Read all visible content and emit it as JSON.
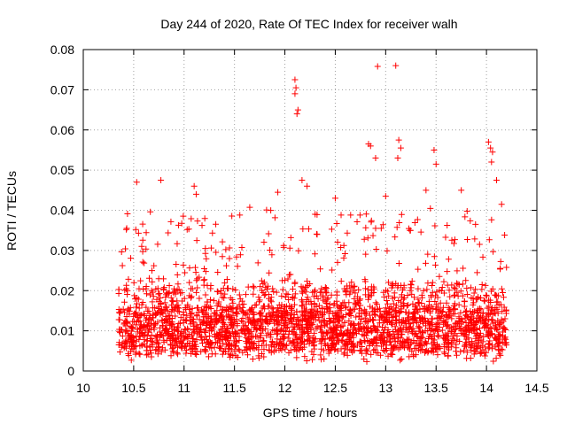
{
  "chart_data": {
    "type": "scatter",
    "title": "Day 244 of 2020, Rate Of TEC Index for receiver walh",
    "xlabel": "GPS time / hours",
    "ylabel": "ROTI / TECUs",
    "xlim": [
      10,
      14.5
    ],
    "ylim": [
      0,
      0.08
    ],
    "xticks": [
      10,
      10.5,
      11,
      11.5,
      12,
      12.5,
      13,
      13.5,
      14,
      14.5
    ],
    "xtick_labels": [
      "10",
      "10.5",
      "11",
      "11.5",
      "12",
      "12.5",
      "13",
      "13.5",
      "14",
      "14.5"
    ],
    "yticks": [
      0,
      0.01,
      0.02,
      0.03,
      0.04,
      0.05,
      0.06,
      0.07,
      0.08
    ],
    "ytick_labels": [
      "0",
      "0.01",
      "0.02",
      "0.03",
      "0.04",
      "0.05",
      "0.06",
      "0.07",
      "0.08"
    ],
    "grid": true,
    "marker": "plus",
    "color": "#ff0000",
    "time_range": [
      10.35,
      14.2
    ],
    "typical_range": [
      0.003,
      0.03
    ],
    "point_count": 2600,
    "highlight_points": [
      {
        "x": 10.53,
        "y": 0.047
      },
      {
        "x": 10.77,
        "y": 0.0475
      },
      {
        "x": 11.1,
        "y": 0.046
      },
      {
        "x": 11.12,
        "y": 0.044
      },
      {
        "x": 11.93,
        "y": 0.0445
      },
      {
        "x": 12.1,
        "y": 0.0725
      },
      {
        "x": 12.11,
        "y": 0.0705
      },
      {
        "x": 12.1,
        "y": 0.069
      },
      {
        "x": 12.13,
        "y": 0.065
      },
      {
        "x": 12.12,
        "y": 0.064
      },
      {
        "x": 12.17,
        "y": 0.0475
      },
      {
        "x": 12.22,
        "y": 0.046
      },
      {
        "x": 12.83,
        "y": 0.0565
      },
      {
        "x": 12.85,
        "y": 0.056
      },
      {
        "x": 12.92,
        "y": 0.0758
      },
      {
        "x": 13.1,
        "y": 0.076
      },
      {
        "x": 13.13,
        "y": 0.0575
      },
      {
        "x": 13.15,
        "y": 0.0555
      },
      {
        "x": 13.12,
        "y": 0.053
      },
      {
        "x": 12.9,
        "y": 0.053
      },
      {
        "x": 13.48,
        "y": 0.055
      },
      {
        "x": 13.5,
        "y": 0.0515
      },
      {
        "x": 14.02,
        "y": 0.057
      },
      {
        "x": 14.04,
        "y": 0.0555
      },
      {
        "x": 14.06,
        "y": 0.0545
      },
      {
        "x": 14.05,
        "y": 0.052
      },
      {
        "x": 14.1,
        "y": 0.0475
      },
      {
        "x": 14.15,
        "y": 0.0415
      },
      {
        "x": 13.75,
        "y": 0.045
      },
      {
        "x": 13.0,
        "y": 0.0435
      },
      {
        "x": 12.5,
        "y": 0.043
      },
      {
        "x": 13.4,
        "y": 0.045
      },
      {
        "x": 11.45,
        "y": 0.028
      },
      {
        "x": 12.3,
        "y": 0.039
      }
    ]
  }
}
